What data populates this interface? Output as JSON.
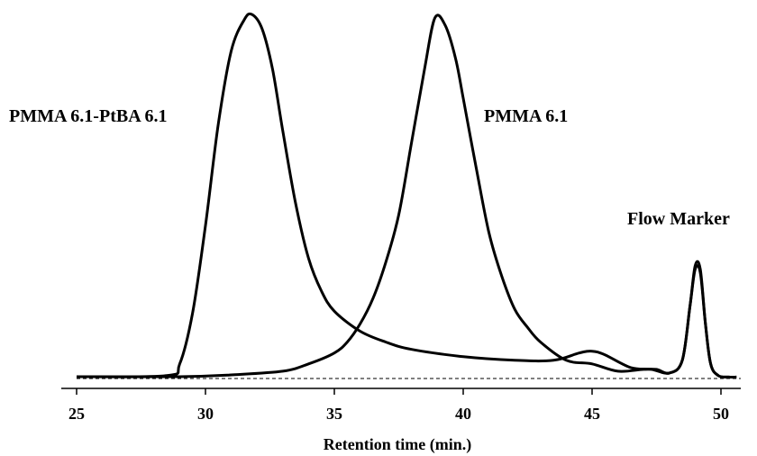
{
  "chart_data": {
    "type": "line",
    "title": "",
    "xlabel": "Retention time (min.)",
    "ylabel": "",
    "xlim": [
      24.8,
      50.6
    ],
    "ylim": [
      0,
      1
    ],
    "x_ticks": [
      25,
      30,
      35,
      40,
      45,
      50
    ],
    "grid": false,
    "legend": "none",
    "line_color": "#000000",
    "series": [
      {
        "name": "PMMA 6.1-PtBA 6.1",
        "x": [
          25.0,
          28.5,
          29.0,
          29.5,
          30.0,
          30.5,
          31.0,
          31.5,
          31.8,
          32.2,
          32.6,
          33.0,
          33.5,
          34.0,
          34.5,
          35.0,
          36.0,
          37.0,
          38.0,
          40.0,
          42.0,
          43.5,
          44.5,
          45.0,
          45.5,
          46.5,
          47.3,
          48.0,
          48.5,
          48.8,
          49.0,
          49.2,
          49.4,
          49.6,
          49.9,
          50.3,
          50.6
        ],
        "y": [
          0.005,
          0.008,
          0.04,
          0.18,
          0.42,
          0.7,
          0.9,
          0.985,
          1.0,
          0.96,
          0.85,
          0.68,
          0.48,
          0.33,
          0.24,
          0.185,
          0.13,
          0.1,
          0.08,
          0.06,
          0.05,
          0.05,
          0.07,
          0.075,
          0.065,
          0.03,
          0.025,
          0.015,
          0.05,
          0.2,
          0.31,
          0.3,
          0.15,
          0.04,
          0.008,
          0.004,
          0.004
        ]
      },
      {
        "name": "PMMA 6.1",
        "x": [
          25.0,
          29.0,
          31.0,
          33.0,
          34.0,
          35.0,
          35.5,
          36.0,
          36.5,
          37.0,
          37.5,
          38.0,
          38.5,
          38.9,
          39.3,
          39.7,
          40.0,
          40.5,
          41.0,
          41.5,
          42.0,
          42.5,
          43.0,
          44.0,
          45.0,
          46.0,
          47.0,
          47.5,
          48.0,
          48.5,
          48.8,
          49.0,
          49.2,
          49.4,
          49.6,
          49.9,
          50.3,
          50.6
        ],
        "y": [
          0.005,
          0.005,
          0.01,
          0.02,
          0.04,
          0.07,
          0.1,
          0.15,
          0.22,
          0.32,
          0.45,
          0.65,
          0.85,
          0.99,
          0.97,
          0.88,
          0.77,
          0.58,
          0.4,
          0.28,
          0.19,
          0.14,
          0.1,
          0.05,
          0.04,
          0.02,
          0.025,
          0.025,
          0.015,
          0.05,
          0.2,
          0.3,
          0.29,
          0.15,
          0.04,
          0.008,
          0.004,
          0.004
        ]
      }
    ],
    "annotations": [
      {
        "text": "PMMA 6.1-PtBA 6.1"
      },
      {
        "text": "PMMA 6.1"
      },
      {
        "text": "Flow Marker"
      }
    ]
  }
}
